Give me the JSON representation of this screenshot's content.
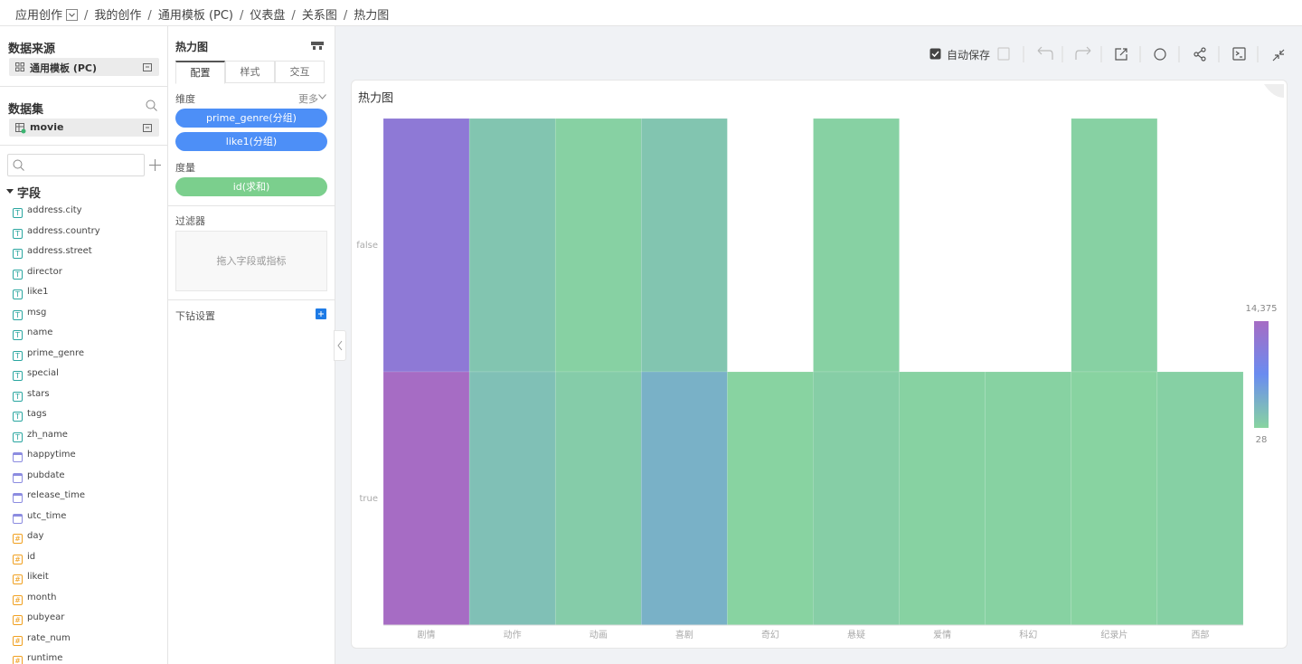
{
  "breadcrumb": [
    "应用创作",
    "我的创作",
    "通用模板 (PC)",
    "仪表盘",
    "关系图",
    "热力图"
  ],
  "left_panel": {
    "source_title": "数据来源",
    "source": "通用模板 (PC)",
    "dataset_title": "数据集",
    "dataset": "movie",
    "fields_title": "字段",
    "fields": [
      {
        "name": "address.city",
        "kind": "text"
      },
      {
        "name": "address.country",
        "kind": "text"
      },
      {
        "name": "address.street",
        "kind": "text"
      },
      {
        "name": "director",
        "kind": "text"
      },
      {
        "name": "like1",
        "kind": "text"
      },
      {
        "name": "msg",
        "kind": "text"
      },
      {
        "name": "name",
        "kind": "text"
      },
      {
        "name": "prime_genre",
        "kind": "text"
      },
      {
        "name": "special",
        "kind": "text"
      },
      {
        "name": "stars",
        "kind": "text"
      },
      {
        "name": "tags",
        "kind": "text"
      },
      {
        "name": "zh_name",
        "kind": "text"
      },
      {
        "name": "happytime",
        "kind": "date"
      },
      {
        "name": "pubdate",
        "kind": "date"
      },
      {
        "name": "release_time",
        "kind": "date"
      },
      {
        "name": "utc_time",
        "kind": "date"
      },
      {
        "name": "day",
        "kind": "number"
      },
      {
        "name": "id",
        "kind": "number"
      },
      {
        "name": "likeit",
        "kind": "number"
      },
      {
        "name": "month",
        "kind": "number"
      },
      {
        "name": "pubyear",
        "kind": "number"
      },
      {
        "name": "rate_num",
        "kind": "number"
      },
      {
        "name": "runtime",
        "kind": "number"
      }
    ]
  },
  "config_panel": {
    "title": "热力图",
    "tabs": [
      "配置",
      "样式",
      "交互"
    ],
    "dimension_label": "维度",
    "more": "更多",
    "dimensions": [
      "prime_genre(分组)",
      "like1(分组)"
    ],
    "measure_label": "度量",
    "measures": [
      "id(求和)"
    ],
    "filter_label": "过滤器",
    "filter_placeholder": "拖入字段或指标",
    "drill_label": "下钻设置"
  },
  "toolbar": {
    "autosave": "自动保存"
  },
  "chart_data": {
    "type": "heatmap",
    "title": "热力图",
    "x": [
      "剧情",
      "动作",
      "动画",
      "喜剧",
      "奇幻",
      "悬疑",
      "爱情",
      "科幻",
      "纪录片",
      "西部"
    ],
    "y": [
      "false",
      "true"
    ],
    "values": [
      [
        11500,
        1500,
        300,
        1500,
        null,
        300,
        null,
        null,
        300,
        null
      ],
      [
        14375,
        2000,
        800,
        3500,
        100,
        600,
        200,
        200,
        100,
        400
      ]
    ],
    "visual_range": [
      {
        "value": 28,
        "label": "28"
      },
      {
        "value": 14375,
        "label": "14,375"
      }
    ],
    "colors": [
      "#88d4a0",
      "#6a8cf0",
      "#a66cc4"
    ]
  }
}
